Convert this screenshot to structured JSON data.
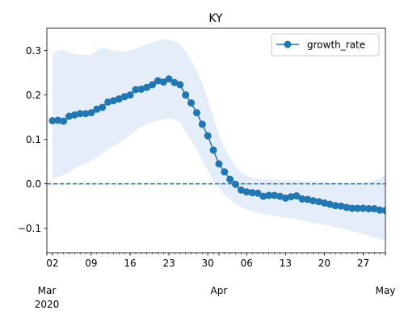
{
  "chart_data": {
    "type": "line",
    "title": "KY",
    "xlabel": "",
    "ylabel": "",
    "x_start_date": "2020-03-01",
    "x_end_date": "2020-05-01",
    "ylim": [
      -0.155,
      0.35
    ],
    "series": [
      {
        "name": "growth_rate",
        "color": "#1f77b4",
        "marker": "circle",
        "x": [
          "2020-03-02",
          "2020-03-03",
          "2020-03-04",
          "2020-03-05",
          "2020-03-06",
          "2020-03-07",
          "2020-03-08",
          "2020-03-09",
          "2020-03-10",
          "2020-03-11",
          "2020-03-12",
          "2020-03-13",
          "2020-03-14",
          "2020-03-15",
          "2020-03-16",
          "2020-03-17",
          "2020-03-18",
          "2020-03-19",
          "2020-03-20",
          "2020-03-21",
          "2020-03-22",
          "2020-03-23",
          "2020-03-24",
          "2020-03-25",
          "2020-03-26",
          "2020-03-27",
          "2020-03-28",
          "2020-03-29",
          "2020-03-30",
          "2020-03-31",
          "2020-04-01",
          "2020-04-02",
          "2020-04-03",
          "2020-04-04",
          "2020-04-05",
          "2020-04-06",
          "2020-04-07",
          "2020-04-08",
          "2020-04-09",
          "2020-04-10",
          "2020-04-11",
          "2020-04-12",
          "2020-04-13",
          "2020-04-14",
          "2020-04-15",
          "2020-04-16",
          "2020-04-17",
          "2020-04-18",
          "2020-04-19",
          "2020-04-20",
          "2020-04-21",
          "2020-04-22",
          "2020-04-23",
          "2020-04-24",
          "2020-04-25",
          "2020-04-26",
          "2020-04-27",
          "2020-04-28",
          "2020-04-29",
          "2020-04-30",
          "2020-05-01"
        ],
        "values": [
          0.142,
          0.143,
          0.141,
          0.152,
          0.155,
          0.158,
          0.158,
          0.16,
          0.168,
          0.172,
          0.184,
          0.187,
          0.191,
          0.196,
          0.2,
          0.212,
          0.213,
          0.217,
          0.223,
          0.232,
          0.229,
          0.236,
          0.228,
          0.223,
          0.2,
          0.182,
          0.16,
          0.134,
          0.108,
          0.076,
          0.045,
          0.027,
          0.01,
          -0.001,
          -0.014,
          -0.018,
          -0.02,
          -0.021,
          -0.028,
          -0.026,
          -0.026,
          -0.028,
          -0.032,
          -0.029,
          -0.027,
          -0.034,
          -0.035,
          -0.038,
          -0.04,
          -0.043,
          -0.046,
          -0.049,
          -0.05,
          -0.053,
          -0.055,
          -0.055,
          -0.055,
          -0.056,
          -0.056,
          -0.059,
          -0.06
        ],
        "lower": [
          0.012,
          0.016,
          0.02,
          0.025,
          0.035,
          0.04,
          0.045,
          0.052,
          0.06,
          0.068,
          0.078,
          0.085,
          0.092,
          0.1,
          0.11,
          0.12,
          0.128,
          0.135,
          0.14,
          0.142,
          0.145,
          0.148,
          0.145,
          0.138,
          0.118,
          0.098,
          0.076,
          0.052,
          0.03,
          0.008,
          -0.01,
          -0.025,
          -0.036,
          -0.045,
          -0.052,
          -0.058,
          -0.062,
          -0.065,
          -0.068,
          -0.07,
          -0.072,
          -0.074,
          -0.076,
          -0.078,
          -0.08,
          -0.082,
          -0.085,
          -0.088,
          -0.09,
          -0.092,
          -0.095,
          -0.098,
          -0.1,
          -0.103,
          -0.106,
          -0.11,
          -0.113,
          -0.116,
          -0.12,
          -0.124,
          -0.13
        ],
        "upper": [
          0.292,
          0.3,
          0.302,
          0.296,
          0.292,
          0.292,
          0.29,
          0.29,
          0.3,
          0.306,
          0.303,
          0.3,
          0.298,
          0.298,
          0.301,
          0.304,
          0.31,
          0.314,
          0.318,
          0.322,
          0.325,
          0.324,
          0.32,
          0.314,
          0.298,
          0.278,
          0.254,
          0.226,
          0.19,
          0.15,
          0.112,
          0.082,
          0.058,
          0.04,
          0.025,
          0.018,
          0.014,
          0.012,
          0.01,
          0.01,
          0.01,
          0.009,
          0.008,
          0.008,
          0.008,
          0.007,
          0.006,
          0.006,
          0.005,
          0.004,
          0.003,
          0.003,
          0.003,
          0.002,
          0.002,
          0.003,
          0.004,
          0.005,
          0.008,
          0.012,
          0.022
        ]
      }
    ],
    "reference_line": {
      "y": 0,
      "style": "dashed"
    },
    "band_color": "#dce8f5",
    "yticks": [
      {
        "value": 0.3,
        "label": "0.3"
      },
      {
        "value": 0.2,
        "label": "0.2"
      },
      {
        "value": 0.1,
        "label": "0.1"
      },
      {
        "value": 0.0,
        "label": "0.0"
      },
      {
        "value": -0.1,
        "label": "−0.1"
      }
    ],
    "xticks_minor": [
      {
        "date": "2020-03-02",
        "label": "02"
      },
      {
        "date": "2020-03-09",
        "label": "09"
      },
      {
        "date": "2020-03-16",
        "label": "16"
      },
      {
        "date": "2020-03-23",
        "label": "23"
      },
      {
        "date": "2020-03-30",
        "label": "30"
      },
      {
        "date": "2020-04-06",
        "label": "06"
      },
      {
        "date": "2020-04-13",
        "label": "13"
      },
      {
        "date": "2020-04-20",
        "label": "20"
      },
      {
        "date": "2020-04-27",
        "label": "27"
      }
    ],
    "xticks_major": [
      {
        "date": "2020-03-01",
        "label": "Mar",
        "year": "2020"
      },
      {
        "date": "2020-04-01",
        "label": "Apr",
        "year": ""
      },
      {
        "date": "2020-05-01",
        "label": "May",
        "year": ""
      }
    ],
    "legend": {
      "position": "upper-right",
      "entries": [
        "growth_rate"
      ]
    }
  }
}
